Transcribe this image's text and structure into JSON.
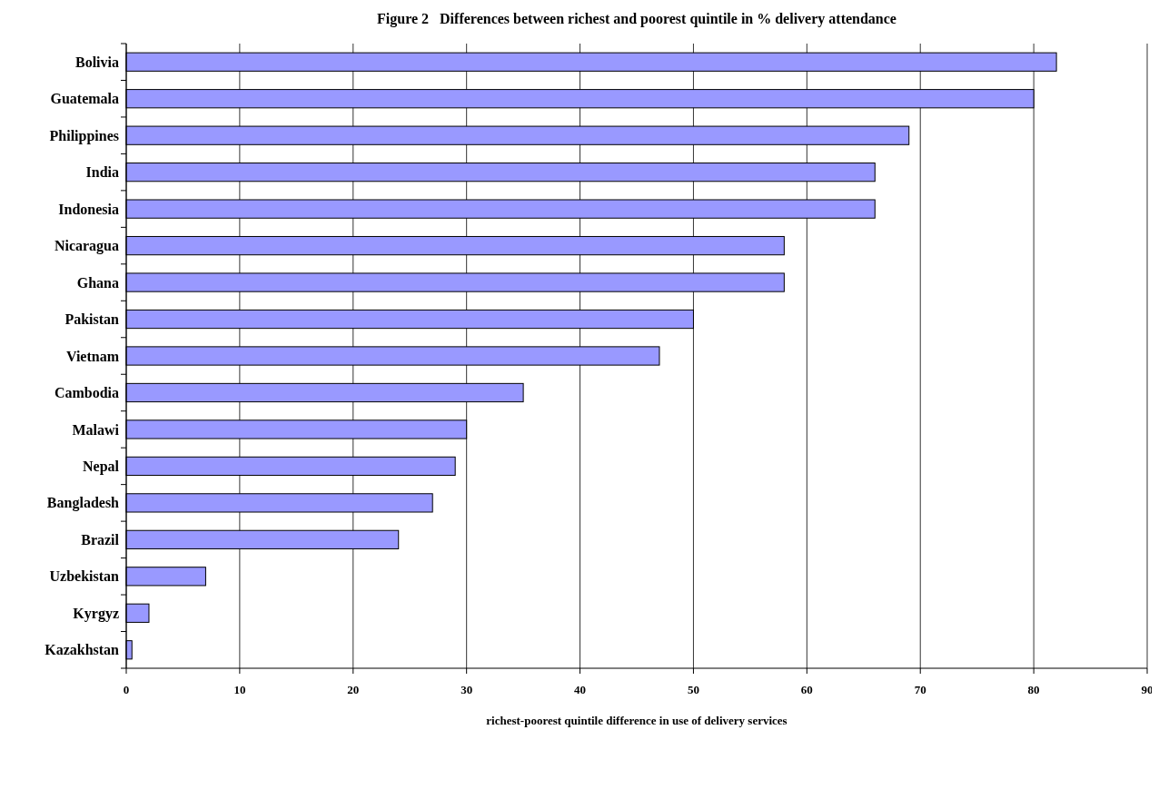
{
  "chart_data": {
    "type": "bar",
    "orientation": "horizontal",
    "title": "Figure 2   Differences between richest and poorest quintile in % delivery attendance",
    "xlabel": "richest-poorest quintile difference in use of delivery services",
    "categories": [
      "Bolivia",
      "Guatemala",
      "Philippines",
      "India",
      "Indonesia",
      "Nicaragua",
      "Ghana",
      "Pakistan",
      "Vietnam",
      "Cambodia",
      "Malawi",
      "Nepal",
      "Bangladesh",
      "Brazil",
      "Uzbekistan",
      "Kyrgyz",
      "Kazakhstan"
    ],
    "values": [
      82,
      80,
      69,
      66,
      66,
      58,
      58,
      50,
      47,
      35,
      30,
      29,
      27,
      24,
      7,
      2,
      0.5
    ],
    "color": "#9999ff",
    "xlim": [
      0,
      90
    ],
    "xticks": [
      0,
      10,
      20,
      30,
      40,
      50,
      60,
      70,
      80,
      90
    ],
    "grid": "x"
  }
}
